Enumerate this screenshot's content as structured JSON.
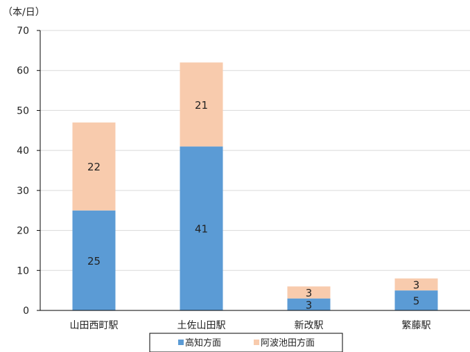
{
  "chart_data": {
    "type": "bar",
    "stacked": true,
    "unit_label": "（本/日）",
    "categories": [
      "山田西町駅",
      "土佐山田駅",
      "新改駅",
      "繁藤駅"
    ],
    "series": [
      {
        "name": "高知方面",
        "color": "#5b9bd5",
        "values": [
          25,
          41,
          3,
          5
        ]
      },
      {
        "name": "阿波池田方面",
        "color": "#f8cbad",
        "values": [
          22,
          21,
          3,
          3
        ]
      }
    ],
    "ylim": [
      0,
      70
    ],
    "yticks": [
      0,
      10,
      20,
      30,
      40,
      50,
      60,
      70
    ],
    "grid": true,
    "legend_position": "bottom"
  }
}
